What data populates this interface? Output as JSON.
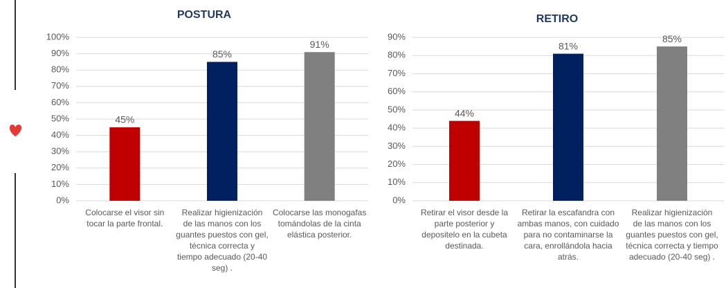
{
  "chart_data": [
    {
      "type": "bar",
      "title": "POSTURA",
      "categories": [
        "Colocarse el visor sin tocar la parte frontal.",
        "Realizar  higienización de las manos con los guantes puestos con gel,  técnica correcta y tiempo adecuado (20-40 seg) .",
        "Colocarse las monogafas tomándolas de la cinta elástica posterior."
      ],
      "values": [
        45,
        85,
        91
      ],
      "value_labels": [
        "45%",
        "85%",
        "91%"
      ],
      "colors": [
        "#c00000",
        "#002060",
        "#808080"
      ],
      "ylim": [
        0,
        100
      ],
      "yticks": [
        {
          "value": 0,
          "label": "0%"
        },
        {
          "value": 10,
          "label": "10%"
        },
        {
          "value": 20,
          "label": "20%"
        },
        {
          "value": 30,
          "label": "30%"
        },
        {
          "value": 40,
          "label": "40%"
        },
        {
          "value": 50,
          "label": "50%"
        },
        {
          "value": 60,
          "label": "60%"
        },
        {
          "value": 70,
          "label": "70%"
        },
        {
          "value": 80,
          "label": "80%"
        },
        {
          "value": 90,
          "label": "90%"
        },
        {
          "value": 100,
          "label": "100%"
        }
      ],
      "grid": true
    },
    {
      "type": "bar",
      "title": "RETIRO",
      "categories": [
        "Retirar el visor desde la parte posterior y depositelo en la cubeta destinada.",
        "Retirar la escafandra con ambas manos, con cuidado para no contaminarse la cara, enrollándola hacia atrás.",
        "Realizar  higienización de las manos con los guantes puestos con gel, técnica correcta y tiempo adecuado (20-40 seg) ."
      ],
      "values": [
        44,
        81,
        85
      ],
      "value_labels": [
        "44%",
        "81%",
        "85%"
      ],
      "colors": [
        "#c00000",
        "#002060",
        "#808080"
      ],
      "ylim": [
        0,
        90
      ],
      "yticks": [
        {
          "value": 0,
          "label": "0%"
        },
        {
          "value": 10,
          "label": "10%"
        },
        {
          "value": 20,
          "label": "20%"
        },
        {
          "value": 30,
          "label": "30%"
        },
        {
          "value": 40,
          "label": "40%"
        },
        {
          "value": 50,
          "label": "50%"
        },
        {
          "value": 60,
          "label": "60%"
        },
        {
          "value": 70,
          "label": "70%"
        },
        {
          "value": 80,
          "label": "80%"
        },
        {
          "value": 90,
          "label": "90%"
        }
      ],
      "grid": true
    }
  ]
}
